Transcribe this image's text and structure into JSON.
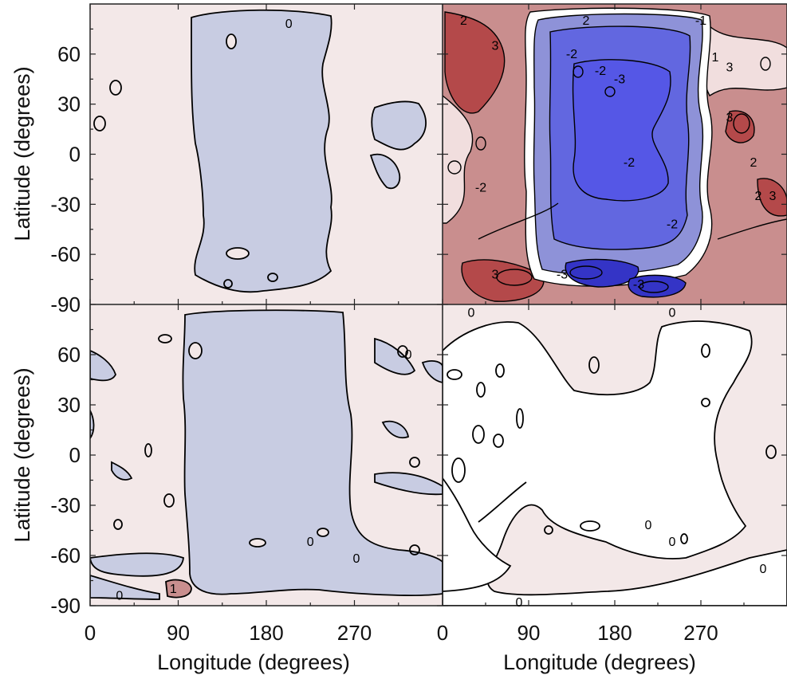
{
  "chart_data": {
    "type": "heatmap",
    "layout": "2x2 panels",
    "x_axis": {
      "label": "Longitude (degrees)",
      "range": [
        0,
        360
      ],
      "ticks": [
        "0",
        "90",
        "180",
        "270"
      ],
      "tick_values": [
        0,
        90,
        180,
        270
      ]
    },
    "y_axis": {
      "label": "Latitude (degrees)",
      "range": [
        -90,
        90
      ],
      "ticks": [
        "60",
        "30",
        "0",
        "-30",
        "-60",
        "-90"
      ],
      "tick_values": [
        60,
        30,
        0,
        -30,
        -60,
        -90
      ]
    },
    "colors": {
      "positive": "#b2585a",
      "weak_positive": "#f3e8e8",
      "negative": "#5a5ad6",
      "weak_negative": "#c5c9e2",
      "zero": "#ffffff",
      "contour": "#000000"
    },
    "panels": [
      {
        "id": "top-left",
        "background_sign": "weak_positive",
        "regions": [
          {
            "sign": "weak_negative",
            "lon": [
              95,
              275
            ],
            "lat": [
              -80,
              85
            ]
          },
          {
            "sign": "weak_negative",
            "lon": [
              300,
              350
            ],
            "lat": [
              0,
              35
            ]
          }
        ],
        "contour_labels": [
          {
            "text": "0",
            "lon": 203,
            "lat": 78
          }
        ]
      },
      {
        "id": "top-right",
        "background_sign": "positive",
        "regions": [
          {
            "sign": "negative",
            "lon": [
              100,
              270
            ],
            "lat": [
              -70,
              85
            ]
          },
          {
            "sign": "positive",
            "lon": [
              0,
              80
            ],
            "lat": [
              -90,
              85
            ]
          },
          {
            "sign": "positive",
            "lon": [
              280,
              360
            ],
            "lat": [
              -90,
              85
            ]
          }
        ],
        "contour_labels": [
          {
            "text": "2",
            "lon": 22,
            "lat": 80
          },
          {
            "text": "3",
            "lon": 55,
            "lat": 65
          },
          {
            "text": "2",
            "lon": 150,
            "lat": 80
          },
          {
            "text": "-2",
            "lon": 135,
            "lat": 60
          },
          {
            "text": "-2",
            "lon": 165,
            "lat": 50
          },
          {
            "text": "-3",
            "lon": 185,
            "lat": 45
          },
          {
            "text": "-2",
            "lon": 195,
            "lat": -5
          },
          {
            "text": "-2",
            "lon": 240,
            "lat": -42
          },
          {
            "text": "-1",
            "lon": 270,
            "lat": 80
          },
          {
            "text": "1",
            "lon": 285,
            "lat": 58
          },
          {
            "text": "3",
            "lon": 300,
            "lat": 52
          },
          {
            "text": "3",
            "lon": 300,
            "lat": 22
          },
          {
            "text": "2",
            "lon": 325,
            "lat": -5
          },
          {
            "text": "-2",
            "lon": 40,
            "lat": -20
          },
          {
            "text": "2",
            "lon": 330,
            "lat": -25
          },
          {
            "text": "3",
            "lon": 345,
            "lat": -25
          },
          {
            "text": "3",
            "lon": 55,
            "lat": -72
          },
          {
            "text": "-3",
            "lon": 125,
            "lat": -72
          },
          {
            "text": "-3",
            "lon": 205,
            "lat": -78
          }
        ]
      },
      {
        "id": "bottom-left",
        "background_sign": "weak_positive",
        "regions": [
          {
            "sign": "weak_negative",
            "lon": [
              95,
              275
            ],
            "lat": [
              -85,
              85
            ]
          },
          {
            "sign": "weak_positive",
            "lon": [
              80,
              95
            ],
            "lat": [
              -88,
              -75
            ]
          }
        ],
        "contour_labels": [
          {
            "text": "0",
            "lon": 325,
            "lat": 60
          },
          {
            "text": "0",
            "lon": 225,
            "lat": -52
          },
          {
            "text": "0",
            "lon": 272,
            "lat": -62
          },
          {
            "text": "1",
            "lon": 85,
            "lat": -80
          },
          {
            "text": "0",
            "lon": 30,
            "lat": -84
          }
        ]
      },
      {
        "id": "bottom-right",
        "background_sign": "weak_positive",
        "regions": [
          {
            "sign": "zero",
            "lon": [
              60,
              330
            ],
            "lat": [
              -80,
              85
            ]
          }
        ],
        "contour_labels": [
          {
            "text": "0",
            "lon": 30,
            "lat": 85
          },
          {
            "text": "0",
            "lon": 240,
            "lat": 85
          },
          {
            "text": "0",
            "lon": 215,
            "lat": -42
          },
          {
            "text": "0",
            "lon": 240,
            "lat": -52
          },
          {
            "text": "0",
            "lon": 335,
            "lat": -68
          },
          {
            "text": "0",
            "lon": 80,
            "lat": -88
          }
        ]
      }
    ]
  }
}
